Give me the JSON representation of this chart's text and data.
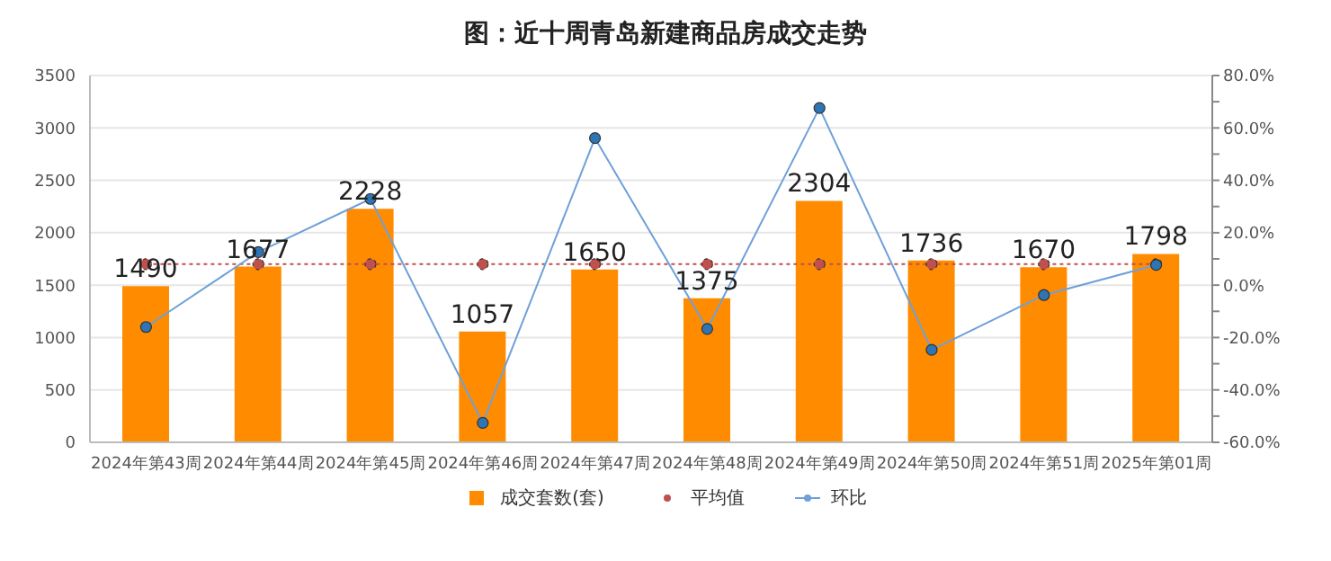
{
  "chart_data": {
    "type": "bar",
    "title": "图：近十周青岛新建商品房成交走势",
    "categories": [
      "2024年第43周",
      "2024年第44周",
      "2024年第45周",
      "2024年第46周",
      "2024年第47周",
      "2024年第48周",
      "2024年第49周",
      "2024年第50周",
      "2024年第51周",
      "2025年第01周"
    ],
    "series": [
      {
        "name": "成交套数(套)",
        "color": "#ff8c00",
        "values": [
          1490,
          1677,
          2228,
          1057,
          1650,
          1375,
          2304,
          1736,
          1670,
          1798
        ],
        "value_labels": [
          "1490",
          "1677",
          "2228",
          "1057",
          "1650",
          "1375",
          "2304",
          "1736",
          "1670",
          "1798"
        ]
      },
      {
        "name": "平均值",
        "type": "line",
        "color": "#c0504d",
        "line_style": "dotted",
        "marker": "circle",
        "values": [
          1700,
          1700,
          1700,
          1700,
          1700,
          1700,
          1700,
          1700,
          1700,
          1700
        ]
      },
      {
        "name": "环比",
        "type": "line",
        "axis": "y2",
        "color": "#6fa0d8",
        "line_style": "solid",
        "marker": "circle",
        "values": [
          -16,
          12.6,
          32.9,
          -52.6,
          56.1,
          -16.7,
          67.6,
          -24.7,
          -3.8,
          7.7
        ]
      }
    ],
    "ylim": [
      0,
      3500
    ],
    "yticks": [
      0,
      500,
      1000,
      1500,
      2000,
      2500,
      3000,
      3500
    ],
    "y2lim": [
      -60,
      80
    ],
    "y2ticks": [
      {
        "value": -60,
        "label": "-60.0%"
      },
      {
        "value": -50,
        "label": null
      },
      {
        "value": -40,
        "label": "-40.0%"
      },
      {
        "value": -30,
        "label": null
      },
      {
        "value": -20,
        "label": "-20.0%"
      },
      {
        "value": -10,
        "label": null
      },
      {
        "value": 0,
        "label": "0.0%"
      },
      {
        "value": 10,
        "label": null
      },
      {
        "value": 20,
        "label": "20.0%"
      },
      {
        "value": 30,
        "label": null
      },
      {
        "value": 40,
        "label": "40.0%"
      },
      {
        "value": 50,
        "label": null
      },
      {
        "value": 60,
        "label": "60.0%"
      },
      {
        "value": 70,
        "label": null
      },
      {
        "value": 80,
        "label": "80.0%"
      }
    ],
    "grid": "y",
    "legend": "bottom"
  }
}
